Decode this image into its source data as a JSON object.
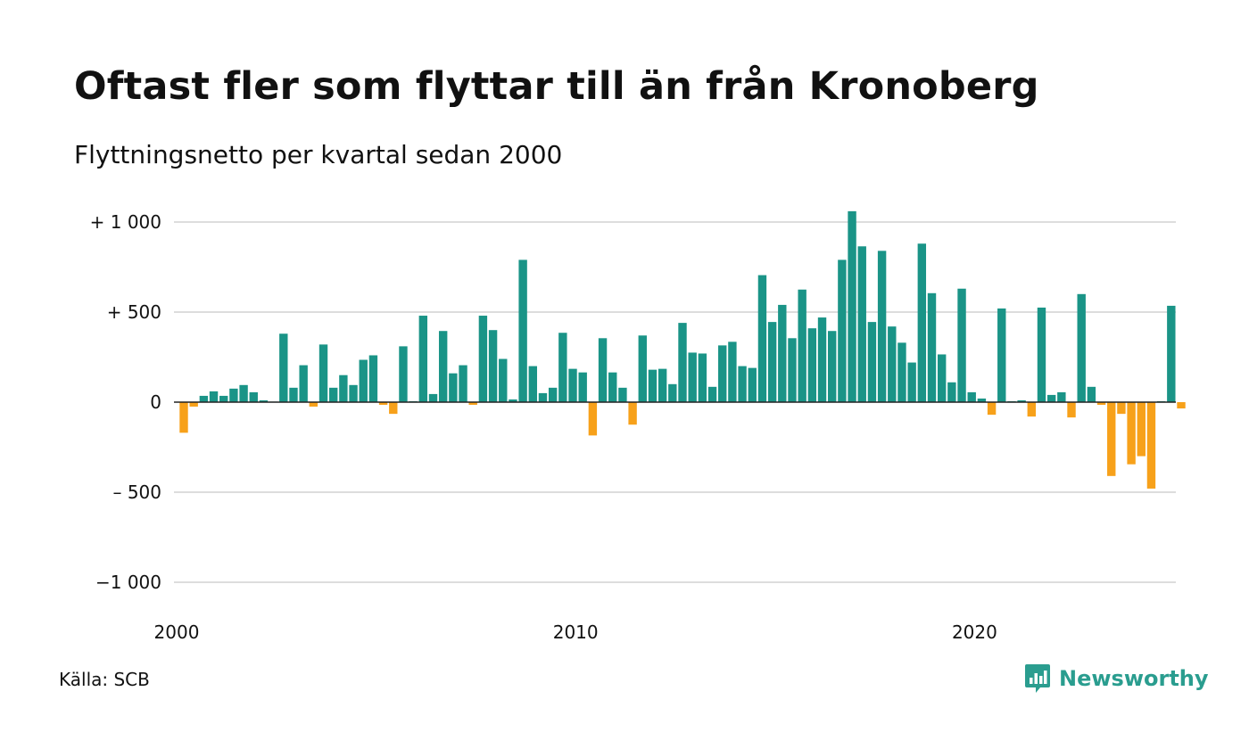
{
  "chart_data": {
    "type": "bar",
    "title": "Oftast fler som flyttar till än från Kronoberg",
    "subtitle": "Flyttningsnetto per kvartal sedan 2000",
    "xlabel": "",
    "ylabel": "",
    "x_tick_labels": [
      "2000",
      "2010",
      "2020"
    ],
    "y_ticks": [
      {
        "value": 1000,
        "label": "+ 1 000"
      },
      {
        "value": 500,
        "label": "+    500"
      },
      {
        "value": 0,
        "label": "0"
      },
      {
        "value": -500,
        "label": "–  500"
      },
      {
        "value": -1000,
        "label": "−1 000"
      }
    ],
    "ylim": [
      -1000,
      1000
    ],
    "grid": true,
    "colors": {
      "positive": "#1a9487",
      "negative": "#f7a11a",
      "grid": "#dddddd",
      "zero_line": "#222222"
    },
    "categories": [
      "2000 K1",
      "2000 K2",
      "2000 K3",
      "2000 K4",
      "2001 K1",
      "2001 K2",
      "2001 K3",
      "2001 K4",
      "2002 K1",
      "2002 K2",
      "2002 K3",
      "2002 K4",
      "2003 K1",
      "2003 K2",
      "2003 K3",
      "2003 K4",
      "2004 K1",
      "2004 K2",
      "2004 K3",
      "2004 K4",
      "2005 K1",
      "2005 K2",
      "2005 K3",
      "2005 K4",
      "2006 K1",
      "2006 K2",
      "2006 K3",
      "2006 K4",
      "2007 K1",
      "2007 K2",
      "2007 K3",
      "2007 K4",
      "2008 K1",
      "2008 K2",
      "2008 K3",
      "2008 K4",
      "2009 K1",
      "2009 K2",
      "2009 K3",
      "2009 K4",
      "2010 K1",
      "2010 K2",
      "2010 K3",
      "2010 K4",
      "2011 K1",
      "2011 K2",
      "2011 K3",
      "2011 K4",
      "2012 K1",
      "2012 K2",
      "2012 K3",
      "2012 K4",
      "2013 K1",
      "2013 K2",
      "2013 K3",
      "2013 K4",
      "2014 K1",
      "2014 K2",
      "2014 K3",
      "2014 K4",
      "2015 K1",
      "2015 K2",
      "2015 K3",
      "2015 K4",
      "2016 K1",
      "2016 K2",
      "2016 K3",
      "2016 K4",
      "2017 K1",
      "2017 K2",
      "2017 K3",
      "2017 K4",
      "2018 K1",
      "2018 K2",
      "2018 K3",
      "2018 K4",
      "2019 K1",
      "2019 K2",
      "2019 K3",
      "2019 K4",
      "2020 K1",
      "2020 K2",
      "2020 K3",
      "2020 K4",
      "2021 K1",
      "2021 K2",
      "2021 K3",
      "2021 K4",
      "2022 K1",
      "2022 K2",
      "2022 K3",
      "2022 K4",
      "2023 K1",
      "2023 K2",
      "2023 K3",
      "2023 K4",
      "2024 K1",
      "2024 K2",
      "2024 K3",
      "2024 K4",
      "2025 K1"
    ],
    "values": [
      -170,
      -25,
      35,
      60,
      35,
      75,
      95,
      55,
      10,
      3,
      380,
      80,
      205,
      -25,
      320,
      80,
      150,
      95,
      235,
      260,
      -15,
      -65,
      310,
      5,
      480,
      45,
      395,
      160,
      205,
      -15,
      480,
      400,
      240,
      15,
      790,
      200,
      50,
      80,
      385,
      185,
      165,
      -185,
      355,
      165,
      80,
      -125,
      370,
      180,
      185,
      100,
      440,
      275,
      270,
      85,
      315,
      335,
      200,
      190,
      705,
      445,
      540,
      355,
      625,
      410,
      470,
      395,
      790,
      1060,
      865,
      445,
      840,
      420,
      330,
      220,
      880,
      605,
      265,
      110,
      630,
      55,
      20,
      -70,
      520,
      5,
      10,
      -80,
      525,
      40,
      55,
      -85,
      600,
      85,
      -15,
      -410,
      -65,
      -345,
      -300,
      -480,
      5,
      535,
      -35
    ]
  },
  "footer": {
    "source": "Källa: SCB",
    "brand": "Newsworthy",
    "logo_icon": "newsworthy-logo-icon"
  }
}
